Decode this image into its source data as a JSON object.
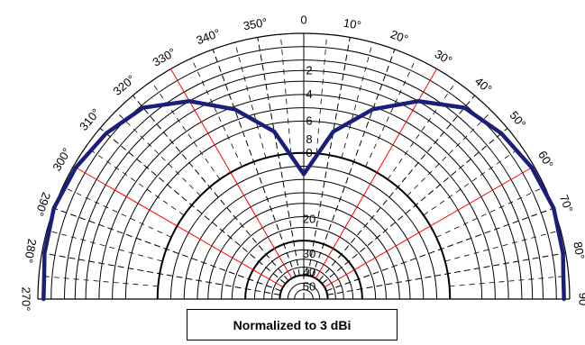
{
  "chart_data": {
    "type": "polar",
    "half": "upper",
    "colors": {
      "pattern": "#1b1f7a",
      "spoke_highlight": "#ff0000",
      "grid": "#000000"
    },
    "angle_ticks": [
      "270°",
      "280°",
      "290°",
      "300°",
      "310°",
      "320°",
      "330°",
      "340°",
      "350°",
      "0",
      "10°",
      "20°",
      "30°",
      "40°",
      "50°",
      "60°",
      "70°",
      "80°",
      "90"
    ],
    "radial_labels": [
      "2",
      "4",
      "6",
      "8",
      "0",
      "20",
      "30",
      "40",
      "50"
    ],
    "caption": "Normalized to 3 dBi",
    "series": [
      {
        "points": [
          {
            "deg": -85,
            "r": 0.98
          },
          {
            "deg": -80,
            "r": 0.99
          },
          {
            "deg": -70,
            "r": 1.0
          },
          {
            "deg": -60,
            "r": 0.99
          },
          {
            "deg": -50,
            "r": 0.97
          },
          {
            "deg": -40,
            "r": 0.94
          },
          {
            "deg": -30,
            "r": 0.86
          },
          {
            "deg": -20,
            "r": 0.76
          },
          {
            "deg": -10,
            "r": 0.64
          },
          {
            "deg": 0,
            "r": 0.47
          },
          {
            "deg": 10,
            "r": 0.64
          },
          {
            "deg": 20,
            "r": 0.76
          },
          {
            "deg": 30,
            "r": 0.86
          },
          {
            "deg": 40,
            "r": 0.94
          },
          {
            "deg": 50,
            "r": 0.97
          },
          {
            "deg": 60,
            "r": 0.99
          },
          {
            "deg": 70,
            "r": 1.0
          },
          {
            "deg": 80,
            "r": 0.99
          },
          {
            "deg": 85,
            "r": 0.98
          }
        ]
      }
    ]
  }
}
